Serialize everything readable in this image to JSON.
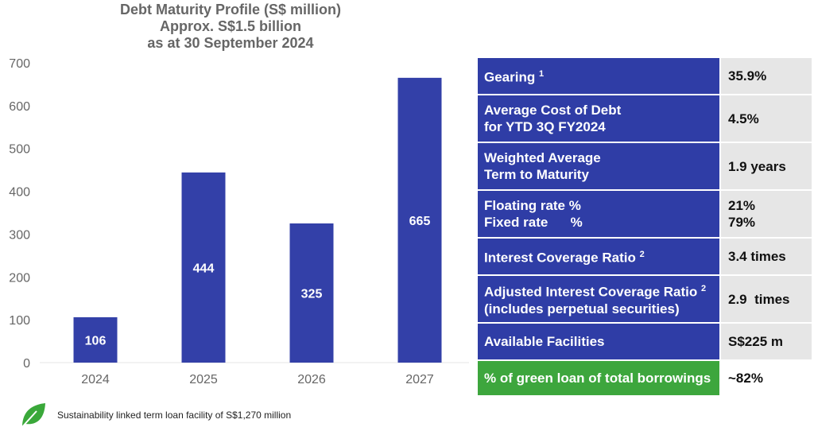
{
  "chart_data": {
    "type": "bar",
    "title": [
      "Debt Maturity Profile (S$ million)",
      "Approx. S$1.5 billion",
      "as at 30 September 2024"
    ],
    "categories": [
      "2024",
      "2025",
      "2026",
      "2027"
    ],
    "values": [
      106,
      444,
      325,
      665
    ],
    "yticks": [
      0,
      100,
      200,
      300,
      400,
      500,
      600,
      700
    ],
    "ylim": [
      0,
      700
    ],
    "xlabel": "",
    "ylabel": "",
    "grid": false,
    "bar_color": "#3340a8"
  },
  "table": [
    {
      "label": [
        "Gearing"
      ],
      "sup": "1",
      "value": [
        "35.9%"
      ]
    },
    {
      "label": [
        "Average Cost of Debt",
        "for YTD 3Q FY2024"
      ],
      "sup": "",
      "value": [
        "4.5%"
      ]
    },
    {
      "label": [
        "Weighted Average",
        "Term to Maturity"
      ],
      "sup": "",
      "value": [
        "1.9 years"
      ]
    },
    {
      "label": [
        "Floating rate %",
        "Fixed rate      %"
      ],
      "sup": "",
      "value": [
        "21%",
        "79%"
      ]
    },
    {
      "label": [
        "Interest Coverage Ratio"
      ],
      "sup": "2",
      "value": [
        "3.4 times"
      ]
    },
    {
      "label": [
        "Adjusted Interest Coverage Ratio",
        "(includes perpetual securities)"
      ],
      "sup": "2",
      "value": [
        "2.9  times"
      ]
    },
    {
      "label": [
        "Available Facilities"
      ],
      "sup": "",
      "value": [
        "S$225 m"
      ]
    },
    {
      "label": [
        "% of green loan of total borrowings"
      ],
      "sup": "",
      "value": [
        "~82%"
      ],
      "highlight": "#3da63d"
    }
  ],
  "footnote": {
    "icon": "leaf-icon",
    "text": "Sustainability linked term loan facility of S$1,270 million",
    "color": "#3aa83a"
  }
}
